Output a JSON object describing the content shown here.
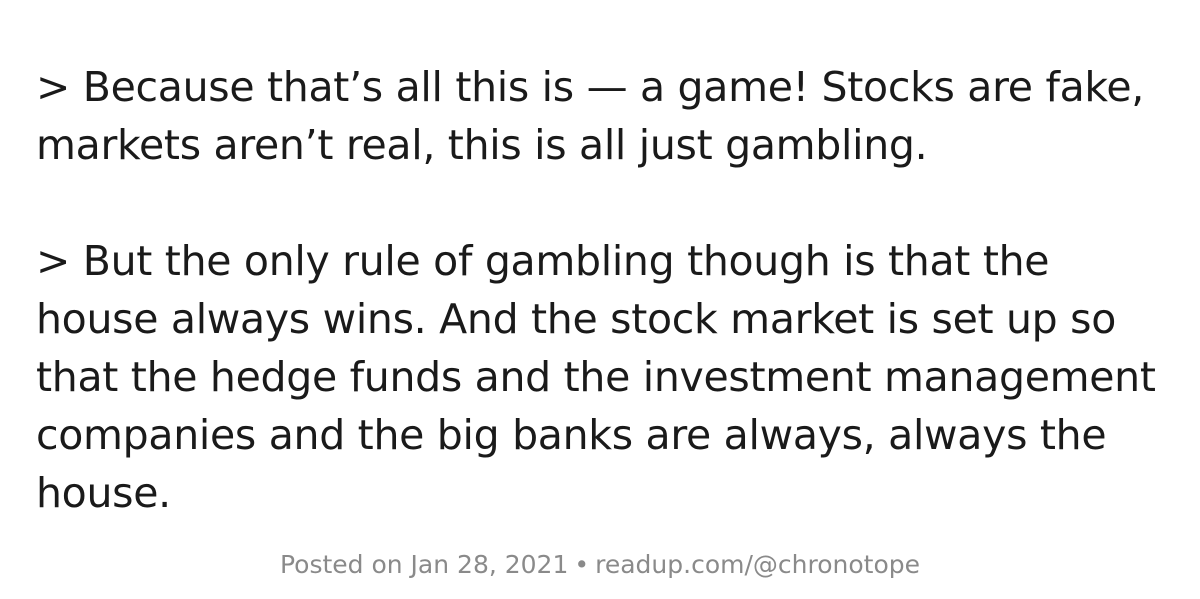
{
  "quote": {
    "paragraphs": [
      "> Because that’s all this is — a game! Stocks are fake, markets aren’t real, this is all just gambling.",
      "> But the only rule of gambling though is that the house always wins. And the stock market is set up so that the hedge funds and the investment management companies and the big banks are always, always the house."
    ]
  },
  "footer": {
    "posted": "Posted on Jan 28, 2021",
    "separator": "•",
    "source": "readup.com/@chronotope"
  }
}
